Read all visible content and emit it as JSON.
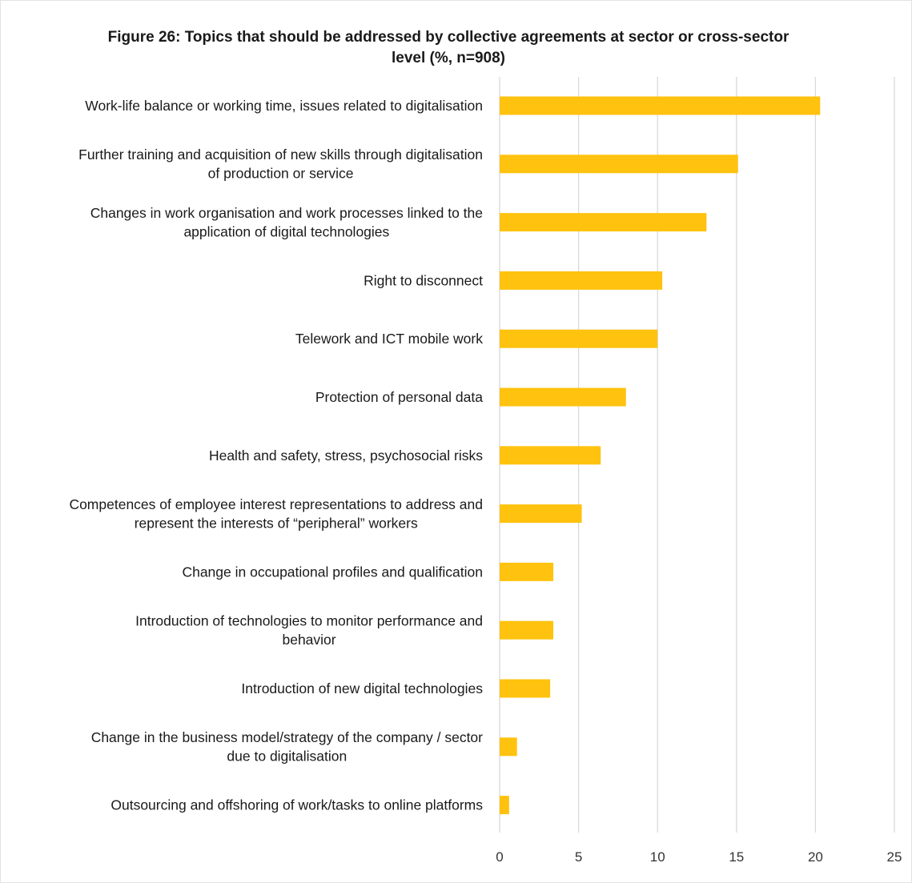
{
  "chart_data": {
    "type": "bar",
    "orientation": "horizontal",
    "title": "Figure 26: Topics that should be addressed by collective agreements at sector or cross-sector level (%, n=908)",
    "title_lines": [
      "Figure 26: Topics that should be addressed by collective agreements at sector or cross-sector",
      "level (%, n=908)"
    ],
    "categories": [
      [
        "Work-life balance or working time, issues related to digitalisation"
      ],
      [
        "Further training and acquisition of new skills through digitalisation",
        "of production or service"
      ],
      [
        "Changes in work organisation and work processes linked to the",
        "application of digital technologies"
      ],
      [
        "Right to disconnect"
      ],
      [
        "Telework and ICT mobile work"
      ],
      [
        "Protection of personal data"
      ],
      [
        "Health and safety, stress, psychosocial risks"
      ],
      [
        "Competences of employee interest representations to address and",
        "represent the interests of “peripheral” workers"
      ],
      [
        "Change in occupational profiles and qualification"
      ],
      [
        "Introduction of technologies to monitor performance and",
        "behavior"
      ],
      [
        "Introduction of new digital technologies"
      ],
      [
        "Change in the business model/strategy of the company / sector",
        "due to digitalisation"
      ],
      [
        "Outsourcing and offshoring of work/tasks to online platforms"
      ]
    ],
    "values": [
      20.3,
      15.1,
      13.1,
      10.3,
      10.0,
      8.0,
      6.4,
      5.2,
      3.4,
      3.4,
      3.2,
      1.1,
      0.6
    ],
    "xlim": [
      0,
      25
    ],
    "xticks": [
      "0",
      "5",
      "10",
      "15",
      "20",
      "25"
    ],
    "grid": true,
    "bar_color": "#FFC20E",
    "grid_color": "#d9d9d9"
  }
}
